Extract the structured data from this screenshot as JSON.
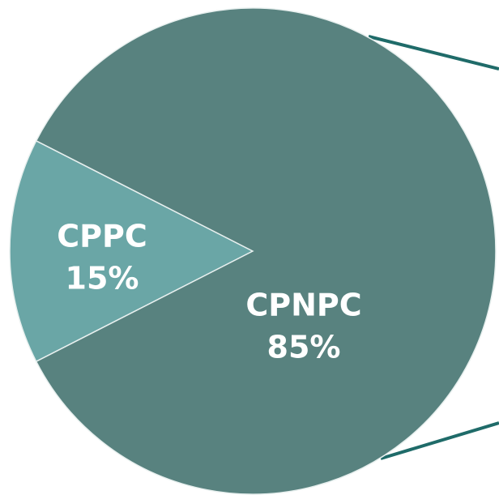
{
  "chart_data": {
    "type": "pie",
    "categories": [
      "CPPC",
      "CPNPC"
    ],
    "values": [
      15,
      85
    ],
    "value_labels": [
      "15%",
      "85%"
    ],
    "colors": [
      "#6aa6a6",
      "#58827f"
    ]
  }
}
